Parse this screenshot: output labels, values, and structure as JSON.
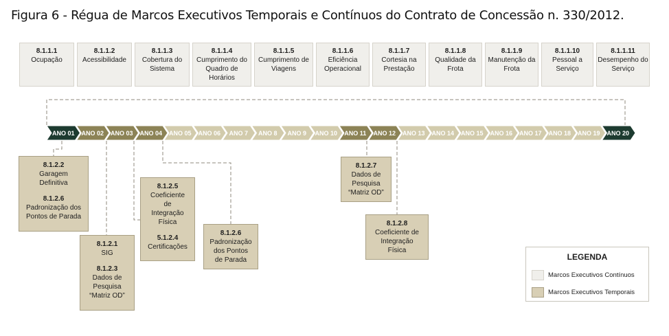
{
  "title": "Figura 6 - Régua de Marcos Executivos Temporais e Contínuos do Contrato de Concessão n. 330/2012.",
  "colors": {
    "continuous_fill": "#f0efeb",
    "temporal_fill": "#d8cfb5",
    "year_highlight": "#8c8356",
    "year_normal": "#d2cbac",
    "year_endpoint": "#1d3b30"
  },
  "continuous_milestones": [
    {
      "code": "8.1.1.1",
      "label": "Ocupação"
    },
    {
      "code": "8.1.1.2",
      "label": "Acessibilidade"
    },
    {
      "code": "8.1.1.3",
      "label": "Cobertura do Sistema"
    },
    {
      "code": "8.1.1.4",
      "label": "Cumprimento do Quadro de Horários"
    },
    {
      "code": "8.1.1.5",
      "label": "Cumprimento de Viagens"
    },
    {
      "code": "8.1.1.6",
      "label": "Eficiência Operacional"
    },
    {
      "code": "8.1.1.7",
      "label": "Cortesia na Prestação"
    },
    {
      "code": "8.1.1.8",
      "label": "Qualidade da Frota"
    },
    {
      "code": "8.1.1.9",
      "label": "Manutenção da Frota"
    },
    {
      "code": "8.1.1.10",
      "label": "Pessoal a Serviço"
    },
    {
      "code": "8.1.1.11",
      "label": "Desempenho do Serviço"
    }
  ],
  "years": [
    {
      "label": "ANO 01",
      "kind": "endpoint"
    },
    {
      "label": "ANO 02",
      "kind": "highlight"
    },
    {
      "label": "ANO 03",
      "kind": "highlight"
    },
    {
      "label": "ANO 04",
      "kind": "highlight"
    },
    {
      "label": "ANO 05",
      "kind": "normal"
    },
    {
      "label": "ANO 06",
      "kind": "normal"
    },
    {
      "label": "ANO 7",
      "kind": "normal"
    },
    {
      "label": "ANO 8",
      "kind": "normal"
    },
    {
      "label": "ANO 9",
      "kind": "normal"
    },
    {
      "label": "ANO 10",
      "kind": "normal"
    },
    {
      "label": "ANO 11",
      "kind": "highlight"
    },
    {
      "label": "ANO 12",
      "kind": "highlight"
    },
    {
      "label": "ANO 13",
      "kind": "normal"
    },
    {
      "label": "ANO 14",
      "kind": "normal"
    },
    {
      "label": "ANO 15",
      "kind": "normal"
    },
    {
      "label": "ANO 16",
      "kind": "normal"
    },
    {
      "label": "ANO 17",
      "kind": "normal"
    },
    {
      "label": "ANO 18",
      "kind": "normal"
    },
    {
      "label": "ANO 19",
      "kind": "normal"
    },
    {
      "label": "ANO 20",
      "kind": "endpoint"
    }
  ],
  "temporal_milestones": [
    {
      "year": "ANO 02",
      "items": [
        {
          "code": "8.1.2.2",
          "label": "Garagem\nDefinitiva"
        },
        {
          "code": "8.1.2.6",
          "label": "Padronização dos\nPontos de Parada"
        }
      ]
    },
    {
      "year": "ANO 03",
      "items": [
        {
          "code": "8.1.2.1",
          "label": "SIG"
        },
        {
          "code": "8.1.2.3",
          "label": "Dados de\nPesquisa\n“Matriz OD”"
        }
      ]
    },
    {
      "year": "ANO 04",
      "items": [
        {
          "code": "8.1.2.5",
          "label": "Coeficiente\nde\nIntegração\nFísica"
        },
        {
          "code": "5.1.2.4",
          "label": "Certificações"
        }
      ]
    },
    {
      "year": "ANO 04",
      "items": [
        {
          "code": "8.1.2.6",
          "label": "Padronização\ndos Pontos\nde Parada"
        }
      ]
    },
    {
      "year": "ANO 11",
      "items": [
        {
          "code": "8.1.2.7",
          "label": "Dados de\nPesquisa\n“Matriz OD”"
        }
      ]
    },
    {
      "year": "ANO 12",
      "items": [
        {
          "code": "8.1.2.8",
          "label": "Coeficiente de\nIntegração\nFísica"
        }
      ]
    }
  ],
  "legend": {
    "title": "LEGENDA",
    "items": [
      {
        "label": "Marcos Executivos Contínuos",
        "color": "#f0efeb"
      },
      {
        "label": "Marcos Executivos Temporais",
        "color": "#d8cfb5"
      }
    ]
  }
}
